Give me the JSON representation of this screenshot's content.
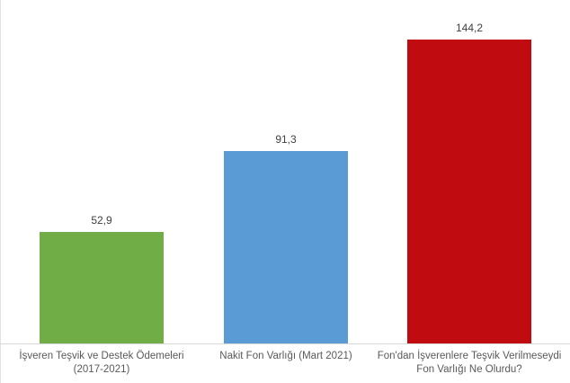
{
  "chart_data": {
    "type": "bar",
    "categories": [
      "İşveren Teşvik ve Destek Ödemeleri (2017-2021)",
      "Nakit Fon Varlığı (Mart 2021)",
      "Fon'dan İşverenlere Teşvik Verilmeseydi Fon Varlığı Ne Olurdu?"
    ],
    "categories_display": [
      "İşveren Teşvik ve Destek Ödemeleri\n(2017-2021)",
      "Nakit Fon Varlığı (Mart 2021)",
      "Fon'dan İşverenlere Teşvik Verilmeseydi\nFon Varlığı Ne Olurdu?"
    ],
    "values": [
      52.9,
      91.3,
      144.2
    ],
    "value_labels": [
      "52,9",
      "91,3",
      "144,2"
    ],
    "bar_colors": [
      "#70AD47",
      "#5B9BD5",
      "#C00B10"
    ],
    "title": "",
    "xlabel": "",
    "ylabel": "",
    "ylim": [
      0,
      150
    ],
    "grid": false,
    "legend": false,
    "axis_line_color": "#D9D9D9",
    "category_label_color": "#595959",
    "value_label_color": "#404040",
    "background_color": "#FFFFFF"
  }
}
